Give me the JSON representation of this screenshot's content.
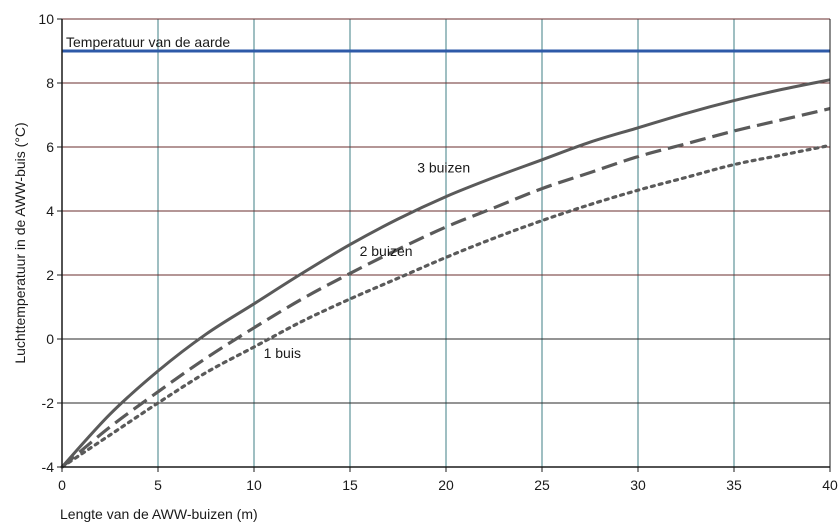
{
  "chart_data": {
    "type": "line",
    "xlabel": "Lengte van de AWW-buizen (m)",
    "ylabel": "Luchttemperatuur in de AWW-buis (°C)",
    "xlim": [
      0,
      40
    ],
    "ylim": [
      -4,
      10
    ],
    "xticks": [
      0,
      5,
      10,
      15,
      20,
      25,
      30,
      35,
      40
    ],
    "yticks": [
      -4,
      -2,
      0,
      2,
      4,
      6,
      8,
      10
    ],
    "grid": true,
    "reference_line": {
      "label": "Temperatuur van de aarde",
      "y": 9,
      "color": "#2e5aa8"
    },
    "series": [
      {
        "name": "3 buizen",
        "style": "solid",
        "color": "#5a5a5a",
        "x": [
          0,
          2.5,
          5,
          7.5,
          10,
          12.5,
          15,
          17.5,
          20,
          22.5,
          25,
          27.5,
          30,
          32.5,
          35,
          37.5,
          40
        ],
        "y": [
          -4,
          -2.35,
          -1.0,
          0.15,
          1.1,
          2.05,
          2.95,
          3.75,
          4.45,
          5.05,
          5.6,
          6.15,
          6.6,
          7.05,
          7.45,
          7.8,
          8.1
        ]
      },
      {
        "name": "2 buizen",
        "style": "dashed",
        "color": "#5a5a5a",
        "x": [
          0,
          2.5,
          5,
          7.5,
          10,
          12.5,
          15,
          17.5,
          20,
          22.5,
          25,
          27.5,
          30,
          32.5,
          35,
          37.5,
          40
        ],
        "y": [
          -4,
          -2.75,
          -1.65,
          -0.6,
          0.35,
          1.25,
          2.05,
          2.8,
          3.5,
          4.1,
          4.7,
          5.2,
          5.7,
          6.1,
          6.5,
          6.85,
          7.2
        ]
      },
      {
        "name": "1 buis",
        "style": "dotted",
        "color": "#5a5a5a",
        "x": [
          0,
          2.5,
          5,
          7.5,
          10,
          12.5,
          15,
          17.5,
          20,
          22.5,
          25,
          27.5,
          30,
          32.5,
          35,
          37.5,
          40
        ],
        "y": [
          -4,
          -3.0,
          -2.0,
          -1.05,
          -0.25,
          0.55,
          1.25,
          1.9,
          2.55,
          3.15,
          3.7,
          4.2,
          4.65,
          5.05,
          5.45,
          5.75,
          6.05
        ]
      }
    ],
    "annotations": [
      {
        "text": "3 buizen",
        "x": 18.5,
        "y": 5.2
      },
      {
        "text": "2 buizen",
        "x": 15.5,
        "y": 2.6
      },
      {
        "text": "1 buis",
        "x": 10.5,
        "y": -0.6
      }
    ]
  }
}
